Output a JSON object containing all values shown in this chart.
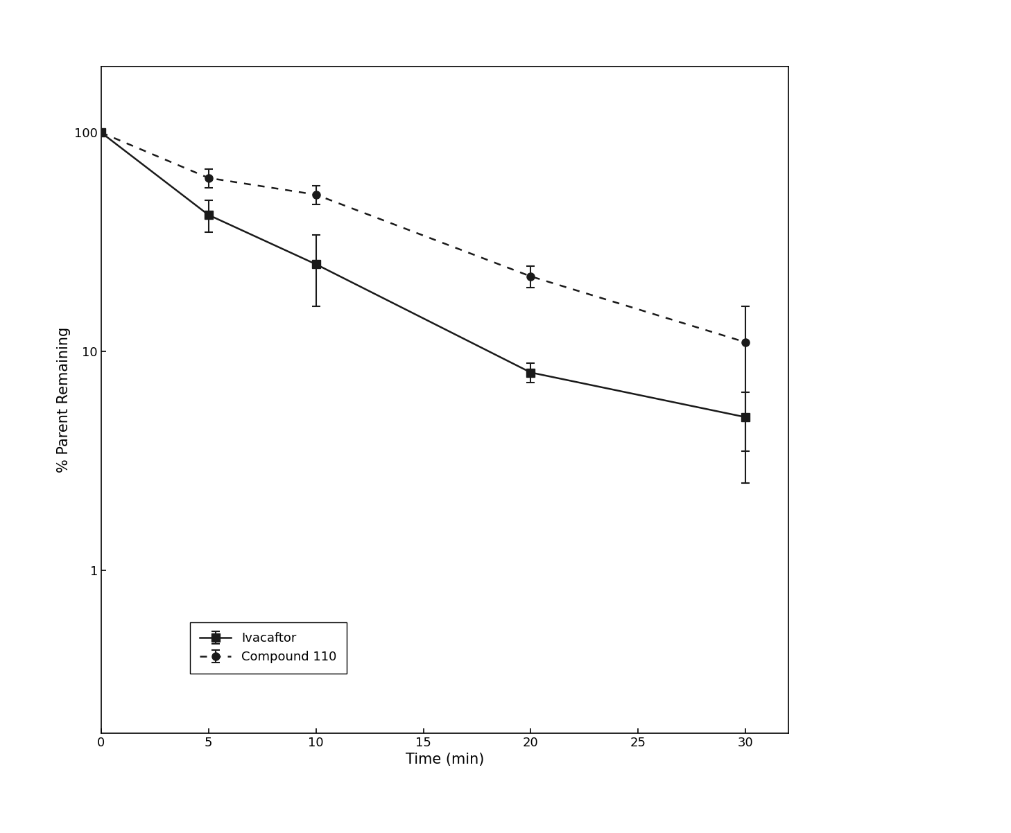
{
  "ivacaftor_x": [
    0,
    5,
    10,
    20,
    30
  ],
  "ivacaftor_y": [
    100,
    42,
    25,
    8,
    5
  ],
  "ivacaftor_yerr_upper": [
    0,
    7,
    9,
    0.8,
    1.5
  ],
  "ivacaftor_yerr_lower": [
    0,
    7,
    9,
    0.8,
    2.5
  ],
  "compound110_x": [
    0,
    5,
    10,
    20,
    30
  ],
  "compound110_y": [
    100,
    62,
    52,
    22,
    11
  ],
  "compound110_yerr_upper": [
    0,
    6,
    5,
    2.5,
    5
  ],
  "compound110_yerr_lower": [
    0,
    6,
    5,
    2.5,
    7.5
  ],
  "xlabel": "Time (min)",
  "ylabel": "% Parent Remaining",
  "legend_ivacaftor": "Ivacaftor",
  "legend_compound110": "Compound 110",
  "xlim": [
    0,
    32
  ],
  "ylim_log": [
    0.18,
    200
  ],
  "xticks": [
    0,
    5,
    10,
    15,
    20,
    25,
    30
  ],
  "yticks": [
    1,
    10,
    100
  ],
  "ytick_labels": [
    "1",
    "10",
    "100"
  ],
  "line_color": "#1a1a1a",
  "background_color": "#ffffff",
  "xlabel_fontsize": 15,
  "ylabel_fontsize": 15,
  "tick_fontsize": 13,
  "legend_fontsize": 13
}
